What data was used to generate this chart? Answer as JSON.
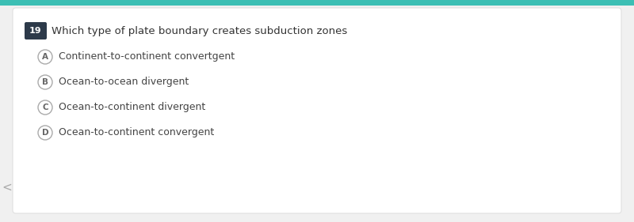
{
  "top_bar_color": "#3cbfb4",
  "background_color": "#f0f0f0",
  "card_color": "#ffffff",
  "question_number": "19",
  "question_number_bg": "#2d3a4a",
  "question_text": "Which type of plate boundary creates subduction zones",
  "options": [
    {
      "label": "A",
      "text": "Continent-to-continent convertgent"
    },
    {
      "label": "B",
      "text": "Ocean-to-ocean divergent"
    },
    {
      "label": "C",
      "text": "Ocean-to-continent divergent"
    },
    {
      "label": "D",
      "text": "Ocean-to-continent convergent"
    }
  ],
  "left_arrow_color": "#aaaaaa",
  "question_font_size": 9.5,
  "option_font_size": 9,
  "circle_edge_color": "#aaaaaa",
  "circle_label_color": "#666666",
  "option_text_color": "#444444",
  "question_text_color": "#333333"
}
